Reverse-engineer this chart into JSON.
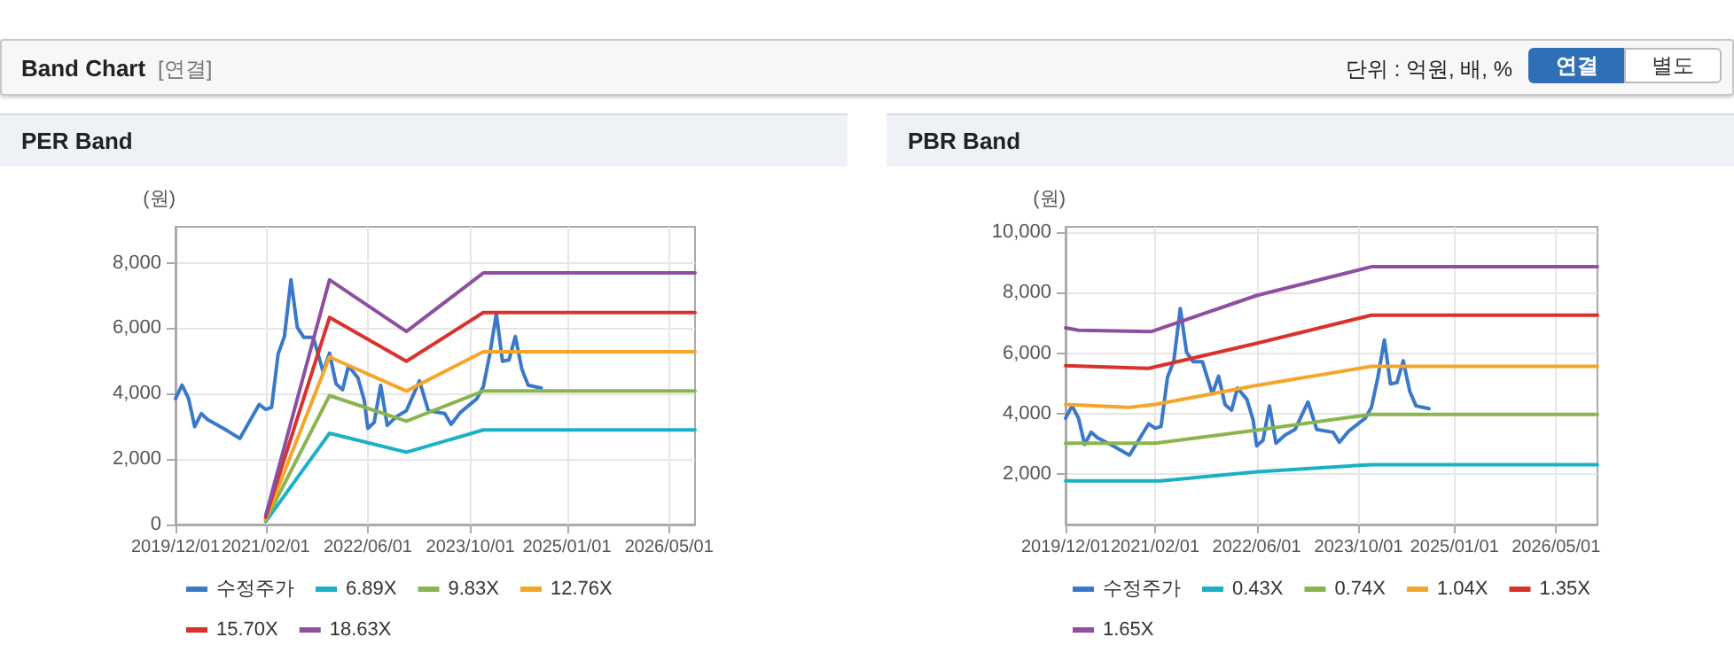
{
  "chart_data": [
    {
      "type": "other",
      "title": "Band Chart",
      "annotations": [
        "[연결]",
        "단위 : 억원, 배, %",
        "연결",
        "별도"
      ]
    },
    {
      "type": "line",
      "title": "PER Band",
      "ylabel": "(원)",
      "grid": true,
      "legend": "bottom",
      "marker": "none",
      "line_style": "solid",
      "xlim": [
        "2019-12-01",
        "2026-09-01"
      ],
      "ylim": [
        0,
        9100
      ],
      "xticks": [
        {
          "value": "2019-12-01",
          "label": "2019/12/01"
        },
        {
          "value": "2021-02-01",
          "label": "2021/02/01"
        },
        {
          "value": "2022-06-01",
          "label": "2022/06/01"
        },
        {
          "value": "2023-10-01",
          "label": "2023/10/01"
        },
        {
          "value": "2025-01-01",
          "label": "2025/01/01"
        },
        {
          "value": "2026-05-01",
          "label": "2026/05/01"
        }
      ],
      "yticks": [
        {
          "value": 0,
          "label": "0"
        },
        {
          "value": 2000,
          "label": "2,000"
        },
        {
          "value": 4000,
          "label": "4,000"
        },
        {
          "value": 6000,
          "label": "6,000"
        },
        {
          "value": 8000,
          "label": "8,000"
        }
      ],
      "series": [
        {
          "name": "수정주가",
          "color": "#3a78c9",
          "x": [
            "2019-12-01",
            "2020-01-01",
            "2020-02-01",
            "2020-03-01",
            "2020-04-01",
            "2020-05-01",
            "2020-07-15",
            "2020-10-01",
            "2021-01-01",
            "2021-02-01",
            "2021-03-01",
            "2021-04-01",
            "2021-05-01",
            "2021-06-01",
            "2021-07-01",
            "2021-08-01",
            "2021-09-15",
            "2021-11-01",
            "2021-12-01",
            "2022-01-01",
            "2022-02-01",
            "2022-03-01",
            "2022-04-15",
            "2022-05-15",
            "2022-06-01",
            "2022-07-01",
            "2022-08-01",
            "2022-09-01",
            "2022-10-15",
            "2022-12-01",
            "2023-02-01",
            "2023-03-15",
            "2023-06-01",
            "2023-07-01",
            "2023-08-15",
            "2023-11-01",
            "2023-12-01",
            "2024-01-01",
            "2024-02-01",
            "2024-03-01",
            "2024-04-01",
            "2024-05-01",
            "2024-06-01",
            "2024-07-01",
            "2024-09-01"
          ],
          "values": [
            3850,
            4260,
            3850,
            2990,
            3390,
            3210,
            2940,
            2630,
            3670,
            3520,
            3580,
            5210,
            5750,
            7480,
            6030,
            5720,
            5720,
            4660,
            5240,
            4300,
            4120,
            4850,
            4480,
            3790,
            2940,
            3120,
            4260,
            3030,
            3300,
            3480,
            4390,
            3480,
            3390,
            3060,
            3430,
            3850,
            4210,
            5210,
            6440,
            4990,
            5030,
            5750,
            4750,
            4260,
            4170
          ]
        },
        {
          "name": "6.89X",
          "color": "#1ab1c4",
          "x": [
            "2021-02-01",
            "2021-12-01",
            "2022-12-01",
            "2023-12-01",
            "2026-09-01"
          ],
          "values": [
            90,
            2790,
            2210,
            2890,
            2890
          ]
        },
        {
          "name": "9.83X",
          "color": "#8ab54e",
          "x": [
            "2021-02-01",
            "2021-12-01",
            "2022-12-01",
            "2023-12-01",
            "2026-09-01"
          ],
          "values": [
            130,
            3940,
            3160,
            4080,
            4080
          ]
        },
        {
          "name": "12.76X",
          "color": "#f5a52a",
          "x": [
            "2021-02-01",
            "2021-12-01",
            "2022-12-01",
            "2023-12-01",
            "2026-09-01"
          ],
          "values": [
            160,
            5120,
            4080,
            5280,
            5280
          ]
        },
        {
          "name": "15.70X",
          "color": "#d9312c",
          "x": [
            "2021-02-01",
            "2021-12-01",
            "2022-12-01",
            "2023-12-01",
            "2026-09-01"
          ],
          "values": [
            220,
            6330,
            4990,
            6480,
            6480
          ]
        },
        {
          "name": "18.63X",
          "color": "#8e4fa0",
          "x": [
            "2021-02-01",
            "2021-12-01",
            "2022-12-01",
            "2023-12-01",
            "2026-09-01"
          ],
          "values": [
            270,
            7480,
            5900,
            7690,
            7690
          ]
        }
      ]
    },
    {
      "type": "line",
      "title": "PBR Band",
      "ylabel": "(원)",
      "grid": true,
      "legend": "bottom",
      "marker": "none",
      "line_style": "solid",
      "xlim": [
        "2019-12-01",
        "2026-11-15"
      ],
      "ylim": [
        340,
        10180
      ],
      "xticks": [
        {
          "value": "2019-12-01",
          "label": "2019/12/01"
        },
        {
          "value": "2021-02-01",
          "label": "2021/02/01"
        },
        {
          "value": "2022-06-01",
          "label": "2022/06/01"
        },
        {
          "value": "2023-10-01",
          "label": "2023/10/01"
        },
        {
          "value": "2025-01-01",
          "label": "2025/01/01"
        },
        {
          "value": "2026-05-01",
          "label": "2026/05/01"
        }
      ],
      "yticks": [
        {
          "value": 2000,
          "label": "2,000"
        },
        {
          "value": 4000,
          "label": "4,000"
        },
        {
          "value": 6000,
          "label": "6,000"
        },
        {
          "value": 8000,
          "label": "8,000"
        },
        {
          "value": 10000,
          "label": "10,000"
        }
      ],
      "series": [
        {
          "name": "수정주가",
          "color": "#3a78c9",
          "x": [
            "2019-12-01",
            "2020-01-01",
            "2020-02-01",
            "2020-03-01",
            "2020-04-01",
            "2020-05-01",
            "2020-07-15",
            "2020-10-01",
            "2021-01-01",
            "2021-02-01",
            "2021-03-01",
            "2021-04-01",
            "2021-05-01",
            "2021-06-01",
            "2021-07-01",
            "2021-08-01",
            "2021-09-15",
            "2021-11-01",
            "2021-12-01",
            "2022-01-01",
            "2022-02-01",
            "2022-03-01",
            "2022-04-15",
            "2022-05-15",
            "2022-06-01",
            "2022-07-01",
            "2022-08-01",
            "2022-09-01",
            "2022-10-15",
            "2022-12-01",
            "2023-02-01",
            "2023-03-15",
            "2023-06-01",
            "2023-07-01",
            "2023-08-15",
            "2023-11-01",
            "2023-12-01",
            "2024-01-01",
            "2024-02-01",
            "2024-03-01",
            "2024-04-01",
            "2024-05-01",
            "2024-06-01",
            "2024-07-01",
            "2024-09-01"
          ],
          "values": [
            3850,
            4260,
            3850,
            2990,
            3390,
            3210,
            2940,
            2630,
            3670,
            3520,
            3580,
            5210,
            5750,
            7480,
            6030,
            5720,
            5720,
            4660,
            5240,
            4300,
            4120,
            4850,
            4480,
            3790,
            2940,
            3120,
            4260,
            3030,
            3300,
            3480,
            4390,
            3480,
            3390,
            3060,
            3430,
            3850,
            4210,
            5210,
            6440,
            4990,
            5030,
            5750,
            4750,
            4260,
            4170
          ]
        },
        {
          "name": "0.43X",
          "color": "#1ab1c4",
          "x": [
            "2019-12-01",
            "2021-03-01",
            "2022-06-01",
            "2023-12-01",
            "2026-11-15"
          ],
          "values": [
            1780,
            1780,
            2080,
            2320,
            2320
          ]
        },
        {
          "name": "0.74X",
          "color": "#8ab54e",
          "x": [
            "2019-12-01",
            "2021-02-01",
            "2022-06-01",
            "2023-12-01",
            "2026-11-15"
          ],
          "values": [
            3030,
            3030,
            3460,
            3980,
            3980
          ]
        },
        {
          "name": "1.04X",
          "color": "#f5a52a",
          "x": [
            "2019-12-01",
            "2020-10-01",
            "2021-02-01",
            "2022-06-01",
            "2023-12-01",
            "2026-11-15"
          ],
          "values": [
            4310,
            4210,
            4310,
            4940,
            5570,
            5570
          ]
        },
        {
          "name": "1.35X",
          "color": "#d9312c",
          "x": [
            "2019-12-01",
            "2021-01-01",
            "2022-06-01",
            "2023-12-01",
            "2026-11-15"
          ],
          "values": [
            5590,
            5500,
            6330,
            7260,
            7260
          ]
        },
        {
          "name": "1.65X",
          "color": "#8e4fa0",
          "x": [
            "2019-12-01",
            "2020-02-01",
            "2021-01-15",
            "2022-06-01",
            "2023-12-01",
            "2026-11-15"
          ],
          "values": [
            6840,
            6760,
            6720,
            7910,
            8860,
            8860
          ]
        }
      ]
    }
  ]
}
